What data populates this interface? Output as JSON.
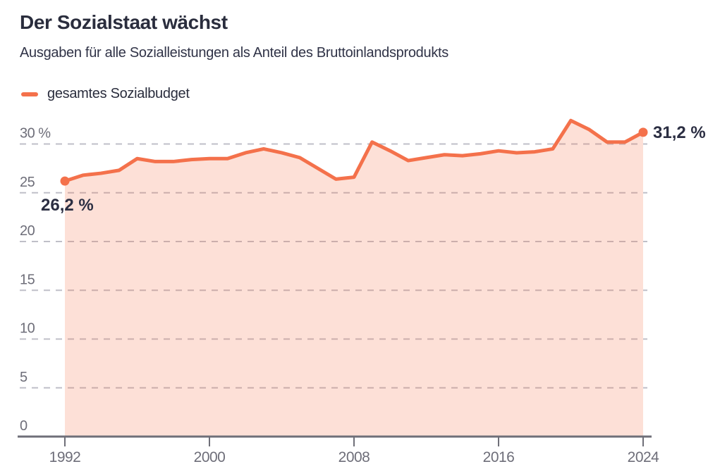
{
  "header": {
    "title": "Der Sozialstaat wächst",
    "subtitle": "Ausgaben für alle Sozialleistungen als Anteil des Bruttoinlandsprodukts"
  },
  "legend": {
    "label": "gesamtes Sozialbudget"
  },
  "colors": {
    "accent": "#f4714b",
    "area_fill": "rgba(244,113,75,0.22)",
    "grid": "#bfbfc8",
    "axis": "#6f6f78",
    "axis_text": "#6e6e79",
    "annotation_text": "#2b2e42"
  },
  "chart_data": {
    "type": "area",
    "title": "Der Sozialstaat wächst",
    "subtitle": "Ausgaben für alle Sozialleistungen als Anteil des Bruttoinlandsprodukts",
    "legend": [
      "gesamtes Sozialbudget"
    ],
    "legend_position": "top-left",
    "unit": "%",
    "grid": "horizontal-dashed",
    "x": [
      1992,
      1993,
      1994,
      1995,
      1996,
      1997,
      1998,
      1999,
      2000,
      2001,
      2002,
      2003,
      2004,
      2005,
      2006,
      2007,
      2008,
      2009,
      2010,
      2011,
      2012,
      2013,
      2014,
      2015,
      2016,
      2017,
      2018,
      2019,
      2020,
      2021,
      2022,
      2023,
      2024
    ],
    "values": [
      26.2,
      26.8,
      27.0,
      27.3,
      28.5,
      28.2,
      28.2,
      28.4,
      28.5,
      28.5,
      29.1,
      29.5,
      29.1,
      28.6,
      27.5,
      26.4,
      26.6,
      30.2,
      29.3,
      28.3,
      28.6,
      28.9,
      28.8,
      29.0,
      29.3,
      29.1,
      29.2,
      29.5,
      32.4,
      31.5,
      30.2,
      30.2,
      31.2
    ],
    "ylim": [
      0,
      30
    ],
    "yticks": [
      0,
      5,
      10,
      15,
      20,
      25,
      30
    ],
    "ytick_labels": [
      "0",
      "5",
      "10",
      "15",
      "20",
      "25",
      "30 %"
    ],
    "xticks": [
      1992,
      2000,
      2008,
      2016,
      2024
    ],
    "xtick_labels": [
      "1992",
      "2000",
      "2008",
      "2016",
      "2024"
    ],
    "annotations": {
      "start_label": "26,2 %",
      "end_label": "31,2 %"
    }
  }
}
